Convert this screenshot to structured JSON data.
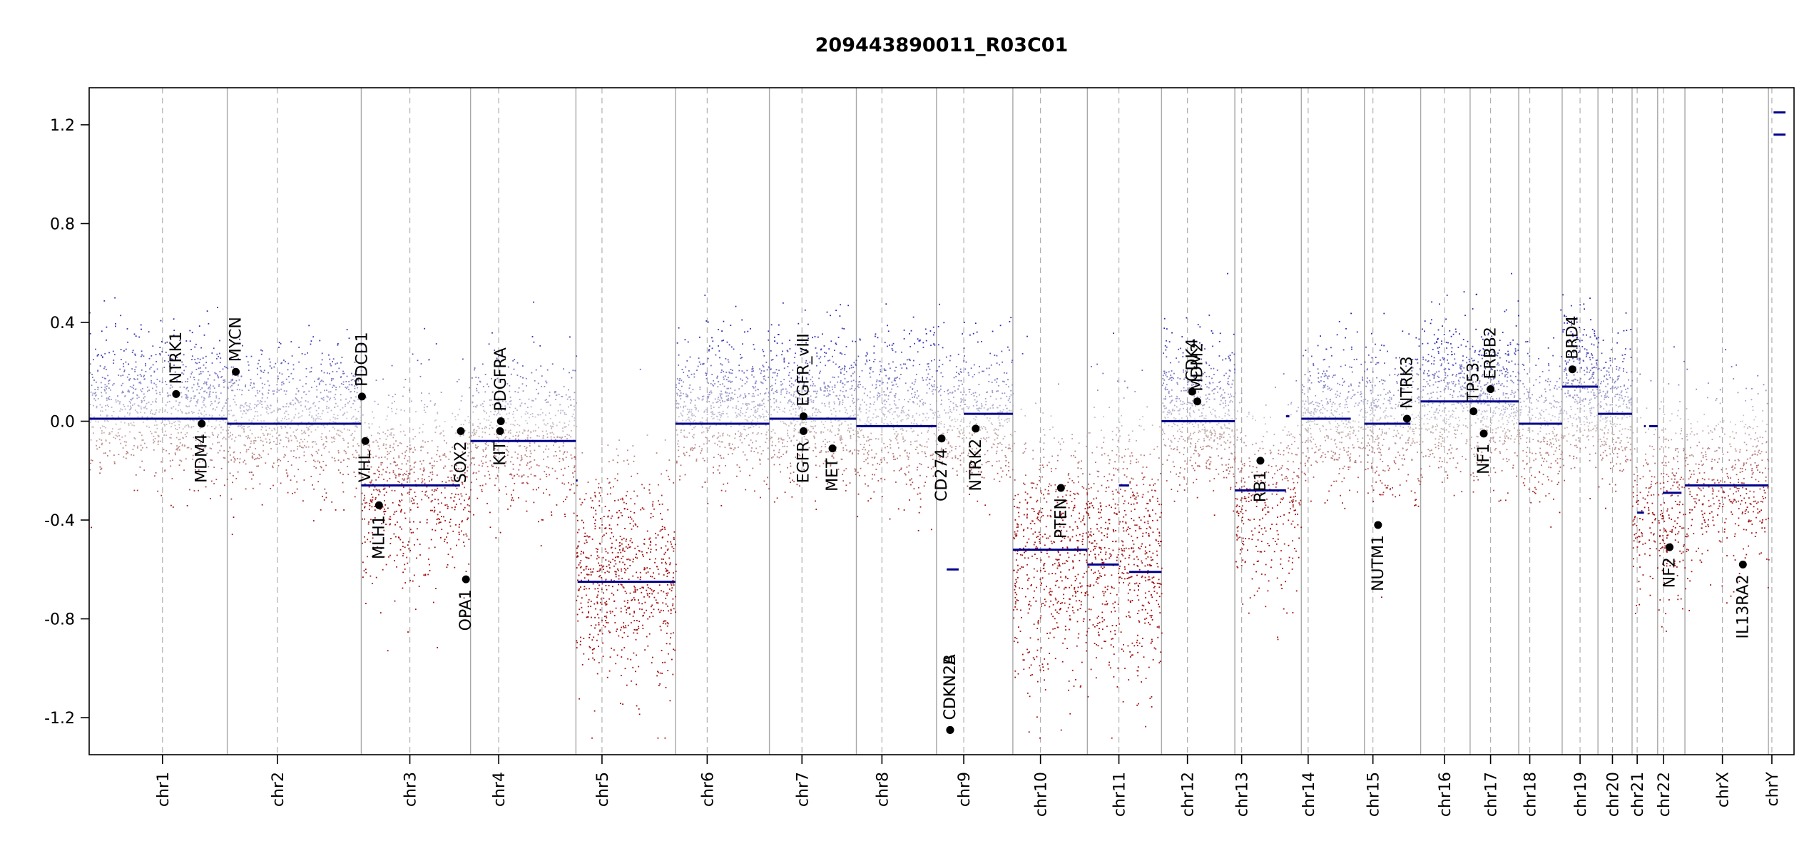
{
  "chart_data": {
    "type": "scatter",
    "title": "209443890011_R03C01",
    "xlabel": "",
    "ylabel": "",
    "ylim": [
      -1.35,
      1.35
    ],
    "y_ticks": [
      1.2,
      0.8,
      0.4,
      0.0,
      -0.4,
      -0.8,
      -1.2
    ],
    "y_tick_labels": [
      "1.2",
      "0.8",
      "0.4",
      "0.0",
      "-0.4",
      "-0.8",
      "-1.2"
    ],
    "grid": "chromosome boundary lines (solid) and centromere lines (dashed)",
    "colors": {
      "gain": "#1a1aa8",
      "loss": "#a01010",
      "neutral": "#bfbfbf",
      "segment": "#00008b",
      "gene_point": "#000000"
    },
    "chromosomes": [
      {
        "name": "chr1",
        "label": "chr1",
        "x0": 0.0,
        "x1": 0.081,
        "cen": 0.043
      },
      {
        "name": "chr2",
        "label": "chr2",
        "x0": 0.081,
        "x1": 0.1596,
        "cen": 0.1104
      },
      {
        "name": "chr3",
        "label": "chr3",
        "x0": 0.1596,
        "x1": 0.2237,
        "cen": 0.1881
      },
      {
        "name": "chr4",
        "label": "chr4",
        "x0": 0.2237,
        "x1": 0.2855,
        "cen": 0.2402
      },
      {
        "name": "chr5",
        "label": "chr5",
        "x0": 0.2855,
        "x1": 0.3439,
        "cen": 0.3008
      },
      {
        "name": "chr6",
        "label": "chr6",
        "x0": 0.3439,
        "x1": 0.399,
        "cen": 0.3625
      },
      {
        "name": "chr7",
        "label": "chr7",
        "x0": 0.399,
        "x1": 0.45,
        "cen": 0.4181
      },
      {
        "name": "chr8",
        "label": "chr8",
        "x0": 0.45,
        "x1": 0.497,
        "cen": 0.465
      },
      {
        "name": "chr9",
        "label": "chr9",
        "x0": 0.497,
        "x1": 0.5418,
        "cen": 0.513
      },
      {
        "name": "chr10",
        "label": "chr10",
        "x0": 0.5418,
        "x1": 0.5855,
        "cen": 0.558
      },
      {
        "name": "chr11",
        "label": "chr11",
        "x0": 0.5855,
        "x1": 0.629,
        "cen": 0.604
      },
      {
        "name": "chr12",
        "label": "chr12",
        "x0": 0.629,
        "x1": 0.672,
        "cen": 0.6442
      },
      {
        "name": "chr13",
        "label": "chr13",
        "x0": 0.672,
        "x1": 0.711,
        "cen": 0.676
      },
      {
        "name": "chr14",
        "label": "chr14",
        "x0": 0.711,
        "x1": 0.748,
        "cen": 0.715
      },
      {
        "name": "chr15",
        "label": "chr15",
        "x0": 0.748,
        "x1": 0.781,
        "cen": 0.753
      },
      {
        "name": "chr16",
        "label": "chr16",
        "x0": 0.781,
        "x1": 0.81,
        "cen": 0.795
      },
      {
        "name": "chr17",
        "label": "chr17",
        "x0": 0.81,
        "x1": 0.8385,
        "cen": 0.822
      },
      {
        "name": "chr18",
        "label": "chr18",
        "x0": 0.8385,
        "x1": 0.864,
        "cen": 0.845
      },
      {
        "name": "chr19",
        "label": "chr19",
        "x0": 0.864,
        "x1": 0.885,
        "cen": 0.8745
      },
      {
        "name": "chr20",
        "label": "chr20",
        "x0": 0.885,
        "x1": 0.905,
        "cen": 0.8935
      },
      {
        "name": "chr21",
        "label": "chr21",
        "x0": 0.905,
        "x1": 0.92,
        "cen": 0.908
      },
      {
        "name": "chr22",
        "label": "chr22",
        "x0": 0.92,
        "x1": 0.936,
        "cen": 0.9235
      },
      {
        "name": "chrX",
        "label": "chrX",
        "x0": 0.936,
        "x1": 0.985,
        "cen": 0.958
      },
      {
        "name": "chrY",
        "label": "chrY",
        "x0": 0.985,
        "x1": 1.0,
        "cen": 0.987
      }
    ],
    "series": [
      {
        "name": "segments",
        "values": [
          {
            "x0": 0.0,
            "x1": 0.081,
            "y": 0.01
          },
          {
            "x0": 0.081,
            "x1": 0.1596,
            "y": -0.01
          },
          {
            "x0": 0.1596,
            "x1": 0.2175,
            "y": -0.26
          },
          {
            "x0": 0.2237,
            "x1": 0.2855,
            "y": -0.08
          },
          {
            "x0": 0.2855,
            "x1": 0.2865,
            "y": -0.24
          },
          {
            "x0": 0.2865,
            "x1": 0.3439,
            "y": -0.65
          },
          {
            "x0": 0.3439,
            "x1": 0.399,
            "y": -0.01
          },
          {
            "x0": 0.399,
            "x1": 0.45,
            "y": 0.01
          },
          {
            "x0": 0.45,
            "x1": 0.497,
            "y": -0.02
          },
          {
            "x0": 0.503,
            "x1": 0.51,
            "y": -0.6
          },
          {
            "x0": 0.513,
            "x1": 0.5418,
            "y": 0.03
          },
          {
            "x0": 0.5418,
            "x1": 0.5855,
            "y": -0.52
          },
          {
            "x0": 0.5855,
            "x1": 0.604,
            "y": -0.58
          },
          {
            "x0": 0.604,
            "x1": 0.61,
            "y": -0.26
          },
          {
            "x0": 0.61,
            "x1": 0.629,
            "y": -0.61
          },
          {
            "x0": 0.629,
            "x1": 0.672,
            "y": 0.0
          },
          {
            "x0": 0.672,
            "x1": 0.702,
            "y": -0.28
          },
          {
            "x0": 0.702,
            "x1": 0.704,
            "y": 0.02
          },
          {
            "x0": 0.711,
            "x1": 0.74,
            "y": 0.01
          },
          {
            "x0": 0.748,
            "x1": 0.775,
            "y": -0.01
          },
          {
            "x0": 0.781,
            "x1": 0.81,
            "y": 0.08
          },
          {
            "x0": 0.81,
            "x1": 0.8385,
            "y": 0.08
          },
          {
            "x0": 0.8385,
            "x1": 0.864,
            "y": -0.01
          },
          {
            "x0": 0.864,
            "x1": 0.885,
            "y": 0.14
          },
          {
            "x0": 0.885,
            "x1": 0.905,
            "y": 0.03
          },
          {
            "x0": 0.908,
            "x1": 0.912,
            "y": -0.37
          },
          {
            "x0": 0.912,
            "x1": 0.913,
            "y": -0.02
          },
          {
            "x0": 0.915,
            "x1": 0.92,
            "y": -0.02
          },
          {
            "x0": 0.923,
            "x1": 0.934,
            "y": -0.29
          },
          {
            "x0": 0.936,
            "x1": 0.985,
            "y": -0.26
          },
          {
            "x0": 0.988,
            "x1": 0.995,
            "y": 1.25
          },
          {
            "x0": 0.988,
            "x1": 0.995,
            "y": 1.16
          }
        ]
      }
    ],
    "probe_density": [
      {
        "chr": "chr1",
        "mean": 0.06,
        "sd": 0.14,
        "n": 900
      },
      {
        "chr": "chr2",
        "mean": 0.01,
        "sd": 0.14,
        "n": 850
      },
      {
        "chr": "chr3",
        "mean": -0.25,
        "sd": 0.2,
        "n": 700
      },
      {
        "chr": "chr4",
        "mean": -0.05,
        "sd": 0.15,
        "n": 600
      },
      {
        "chr": "chr5",
        "mean": -0.62,
        "sd": 0.22,
        "n": 750
      },
      {
        "chr": "chr6",
        "mean": 0.05,
        "sd": 0.14,
        "n": 650
      },
      {
        "chr": "chr7",
        "mean": 0.06,
        "sd": 0.15,
        "n": 650
      },
      {
        "chr": "chr8",
        "mean": 0.03,
        "sd": 0.16,
        "n": 550
      },
      {
        "chr": "chr9",
        "mean": 0.03,
        "sd": 0.15,
        "n": 450
      },
      {
        "chr": "chr10",
        "mean": -0.55,
        "sd": 0.25,
        "n": 600
      },
      {
        "chr": "chr11",
        "mean": -0.5,
        "sd": 0.27,
        "n": 650
      },
      {
        "chr": "chr12",
        "mean": 0.03,
        "sd": 0.14,
        "n": 600
      },
      {
        "chr": "chr13",
        "mean": -0.32,
        "sd": 0.2,
        "n": 350
      },
      {
        "chr": "chr14",
        "mean": 0.03,
        "sd": 0.14,
        "n": 400
      },
      {
        "chr": "chr15",
        "mean": 0.01,
        "sd": 0.15,
        "n": 380
      },
      {
        "chr": "chr16",
        "mean": 0.1,
        "sd": 0.15,
        "n": 380
      },
      {
        "chr": "chr17",
        "mean": 0.08,
        "sd": 0.15,
        "n": 420
      },
      {
        "chr": "chr18",
        "mean": -0.01,
        "sd": 0.14,
        "n": 260
      },
      {
        "chr": "chr19",
        "mean": 0.15,
        "sd": 0.15,
        "n": 320
      },
      {
        "chr": "chr20",
        "mean": 0.05,
        "sd": 0.14,
        "n": 260
      },
      {
        "chr": "chr21",
        "mean": -0.35,
        "sd": 0.2,
        "n": 120
      },
      {
        "chr": "chr22",
        "mean": -0.3,
        "sd": 0.2,
        "n": 200
      },
      {
        "chr": "chrX",
        "mean": -0.25,
        "sd": 0.17,
        "n": 450
      }
    ],
    "genes": [
      {
        "name": "NTRK1",
        "x": 0.051,
        "y": 0.11,
        "label_side": "above"
      },
      {
        "name": "MDM4",
        "x": 0.066,
        "y": -0.01,
        "label_side": "below"
      },
      {
        "name": "MYCN",
        "x": 0.086,
        "y": 0.2,
        "label_side": "above"
      },
      {
        "name": "PDCD1",
        "x": 0.16,
        "y": 0.1,
        "label_side": "above"
      },
      {
        "name": "VHL",
        "x": 0.162,
        "y": -0.08,
        "label_side": "below"
      },
      {
        "name": "MLH1",
        "x": 0.17,
        "y": -0.34,
        "label_side": "below"
      },
      {
        "name": "SOX2",
        "x": 0.218,
        "y": -0.04,
        "label_side": "below"
      },
      {
        "name": "OPA1",
        "x": 0.221,
        "y": -0.64,
        "label_side": "below"
      },
      {
        "name": "KIT",
        "x": 0.241,
        "y": -0.04,
        "label_side": "below"
      },
      {
        "name": "PDGFRA",
        "x": 0.2415,
        "y": 0.0,
        "label_side": "above"
      },
      {
        "name": "EGFR",
        "x": 0.419,
        "y": -0.04,
        "label_side": "below"
      },
      {
        "name": "EGFR_vIII",
        "x": 0.419,
        "y": 0.02,
        "label_side": "above"
      },
      {
        "name": "MET",
        "x": 0.436,
        "y": -0.11,
        "label_side": "below"
      },
      {
        "name": "CD274",
        "x": 0.5,
        "y": -0.07,
        "label_side": "below"
      },
      {
        "name": "CDKN2A",
        "x": 0.505,
        "y": -1.25,
        "label_side": "above"
      },
      {
        "name": "CDKN2B",
        "x": 0.505,
        "y": -1.25,
        "label_side": "above"
      },
      {
        "name": "NTRK2",
        "x": 0.52,
        "y": -0.03,
        "label_side": "below"
      },
      {
        "name": "PTEN",
        "x": 0.57,
        "y": -0.27,
        "label_side": "below"
      },
      {
        "name": "CDK4",
        "x": 0.647,
        "y": 0.12,
        "label_side": "above"
      },
      {
        "name": "MDM2",
        "x": 0.65,
        "y": 0.08,
        "label_side": "above"
      },
      {
        "name": "RB1",
        "x": 0.687,
        "y": -0.16,
        "label_side": "below"
      },
      {
        "name": "NUTM1",
        "x": 0.756,
        "y": -0.42,
        "label_side": "below"
      },
      {
        "name": "NTRK3",
        "x": 0.773,
        "y": 0.01,
        "label_side": "above"
      },
      {
        "name": "TP53",
        "x": 0.812,
        "y": 0.04,
        "label_side": "above"
      },
      {
        "name": "NF1",
        "x": 0.818,
        "y": -0.05,
        "label_side": "below"
      },
      {
        "name": "ERBB2",
        "x": 0.822,
        "y": 0.13,
        "label_side": "above"
      },
      {
        "name": "BRD4",
        "x": 0.87,
        "y": 0.21,
        "label_side": "above"
      },
      {
        "name": "NF2",
        "x": 0.927,
        "y": -0.51,
        "label_side": "below"
      },
      {
        "name": "IL13RA2",
        "x": 0.97,
        "y": -0.58,
        "label_side": "below"
      }
    ]
  }
}
